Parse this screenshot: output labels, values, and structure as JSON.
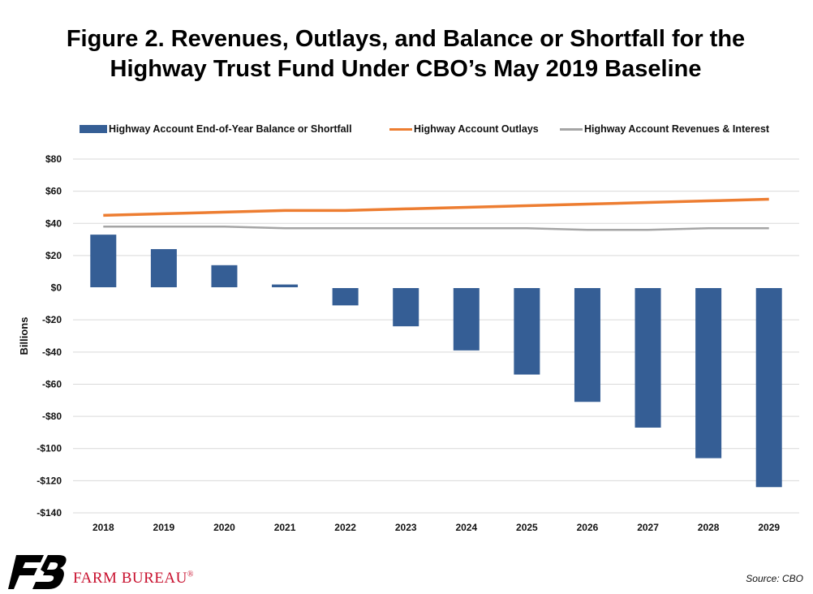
{
  "chart_data": {
    "type": "bar",
    "title": "Figure 2. Revenues, Outlays, and Balance or Shortfall for the Highway Trust Fund Under CBO’s May 2019 Baseline",
    "ylabel": "Billions",
    "xlabel": "",
    "categories": [
      "2018",
      "2019",
      "2020",
      "2021",
      "2022",
      "2023",
      "2024",
      "2025",
      "2026",
      "2027",
      "2028",
      "2029"
    ],
    "ylim": [
      -140,
      80
    ],
    "yticks": [
      80,
      60,
      40,
      20,
      0,
      -20,
      -40,
      -60,
      -80,
      -100,
      -120,
      -140
    ],
    "ytick_labels": [
      "$80",
      "$60",
      "$40",
      "$20",
      "$0",
      "-$20",
      "-$40",
      "-$60",
      "-$80",
      "-$100",
      "-$120",
      "-$140"
    ],
    "grid": true,
    "legend_position": "top",
    "series": [
      {
        "name": "Highway Account End-of-Year Balance or Shortfall",
        "type": "bar",
        "color": "#355e95",
        "values": [
          33,
          24,
          14,
          2,
          -11,
          -24,
          -39,
          -54,
          -71,
          -87,
          -106,
          -124
        ]
      },
      {
        "name": "Highway Account Outlays",
        "type": "line",
        "color": "#ed7d31",
        "values": [
          45,
          46,
          47,
          48,
          48,
          49,
          50,
          51,
          52,
          53,
          54,
          55
        ]
      },
      {
        "name": "Highway Account Revenues & Interest",
        "type": "line",
        "color": "#a5a5a5",
        "values": [
          38,
          38,
          38,
          37,
          37,
          37,
          37,
          37,
          36,
          36,
          37,
          37
        ]
      }
    ]
  },
  "footer": {
    "brand": "FARM BUREAU",
    "registered": "®",
    "source": "Source: CBO"
  }
}
